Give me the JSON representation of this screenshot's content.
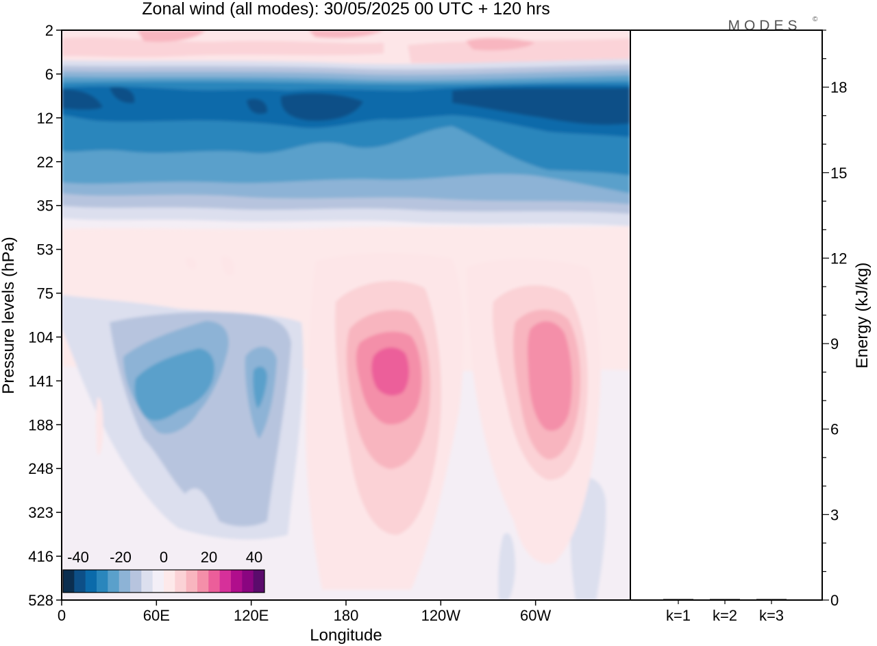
{
  "title": "Zonal wind (all modes):  30/05/2025  00 UTC  + 120 hrs",
  "brand": "MODES",
  "brand_mark": "©",
  "chart_data": [
    {
      "type": "heatmap",
      "title": "Zonal wind (all modes):  30/05/2025  00 UTC  + 120 hrs",
      "xlabel": "Longitude",
      "ylabel": "Pressure levels (hPa)",
      "x_ticks": [
        "0",
        "60E",
        "120E",
        "180",
        "120W",
        "60W"
      ],
      "x_tick_deg": [
        0,
        60,
        120,
        180,
        240,
        300
      ],
      "x_range_deg": [
        0,
        360
      ],
      "y_ticks": [
        "2",
        "6",
        "12",
        "22",
        "35",
        "53",
        "75",
        "104",
        "141",
        "188",
        "248",
        "323",
        "416",
        "528"
      ],
      "y_scale": "model levels, top 2 hPa to bottom 528 hPa",
      "colorbar": {
        "tick_labels": [
          "-40",
          "-20",
          "0",
          "20",
          "40"
        ],
        "min": -45,
        "max": 45,
        "step": 5,
        "colors": [
          "#0b2e4f",
          "#0d4f87",
          "#0b6aaa",
          "#2a86bc",
          "#5aa0cb",
          "#8db3d6",
          "#b7c4de",
          "#dcdfee",
          "#f3eff7",
          "#fde9ea",
          "#fbd2d6",
          "#f8b5bf",
          "#f48fa9",
          "#ec5e9a",
          "#d6309a",
          "#b00e8c",
          "#8a0580",
          "#5b0b6c"
        ]
      },
      "features": [
        {
          "type": "band",
          "description": "stratospheric easterly jet",
          "p_top": 6,
          "p_bottom": 22,
          "value": -35
        },
        {
          "type": "blob",
          "description": "westerly jet core",
          "lon": 195,
          "p": 130,
          "value": 30
        },
        {
          "type": "blob",
          "description": "westerly jet core",
          "lon": 295,
          "p": 130,
          "value": 25
        },
        {
          "type": "blob",
          "description": "easterly core",
          "lon": 55,
          "p": 140,
          "value": -22
        },
        {
          "type": "blob",
          "description": "easterly core",
          "lon": 120,
          "p": 140,
          "value": -15
        }
      ]
    },
    {
      "type": "bar",
      "ylabel": "Energy (kJ/kg)",
      "categories": [
        "k=1",
        "k=2",
        "k=3"
      ],
      "values": [
        0.02,
        0.01,
        0.01
      ],
      "ylim": [
        0,
        20
      ],
      "y_ticks": [
        "0",
        "3",
        "6",
        "9",
        "12",
        "15",
        "18"
      ],
      "y_tick_values": [
        0,
        3,
        6,
        9,
        12,
        15,
        18
      ]
    }
  ]
}
